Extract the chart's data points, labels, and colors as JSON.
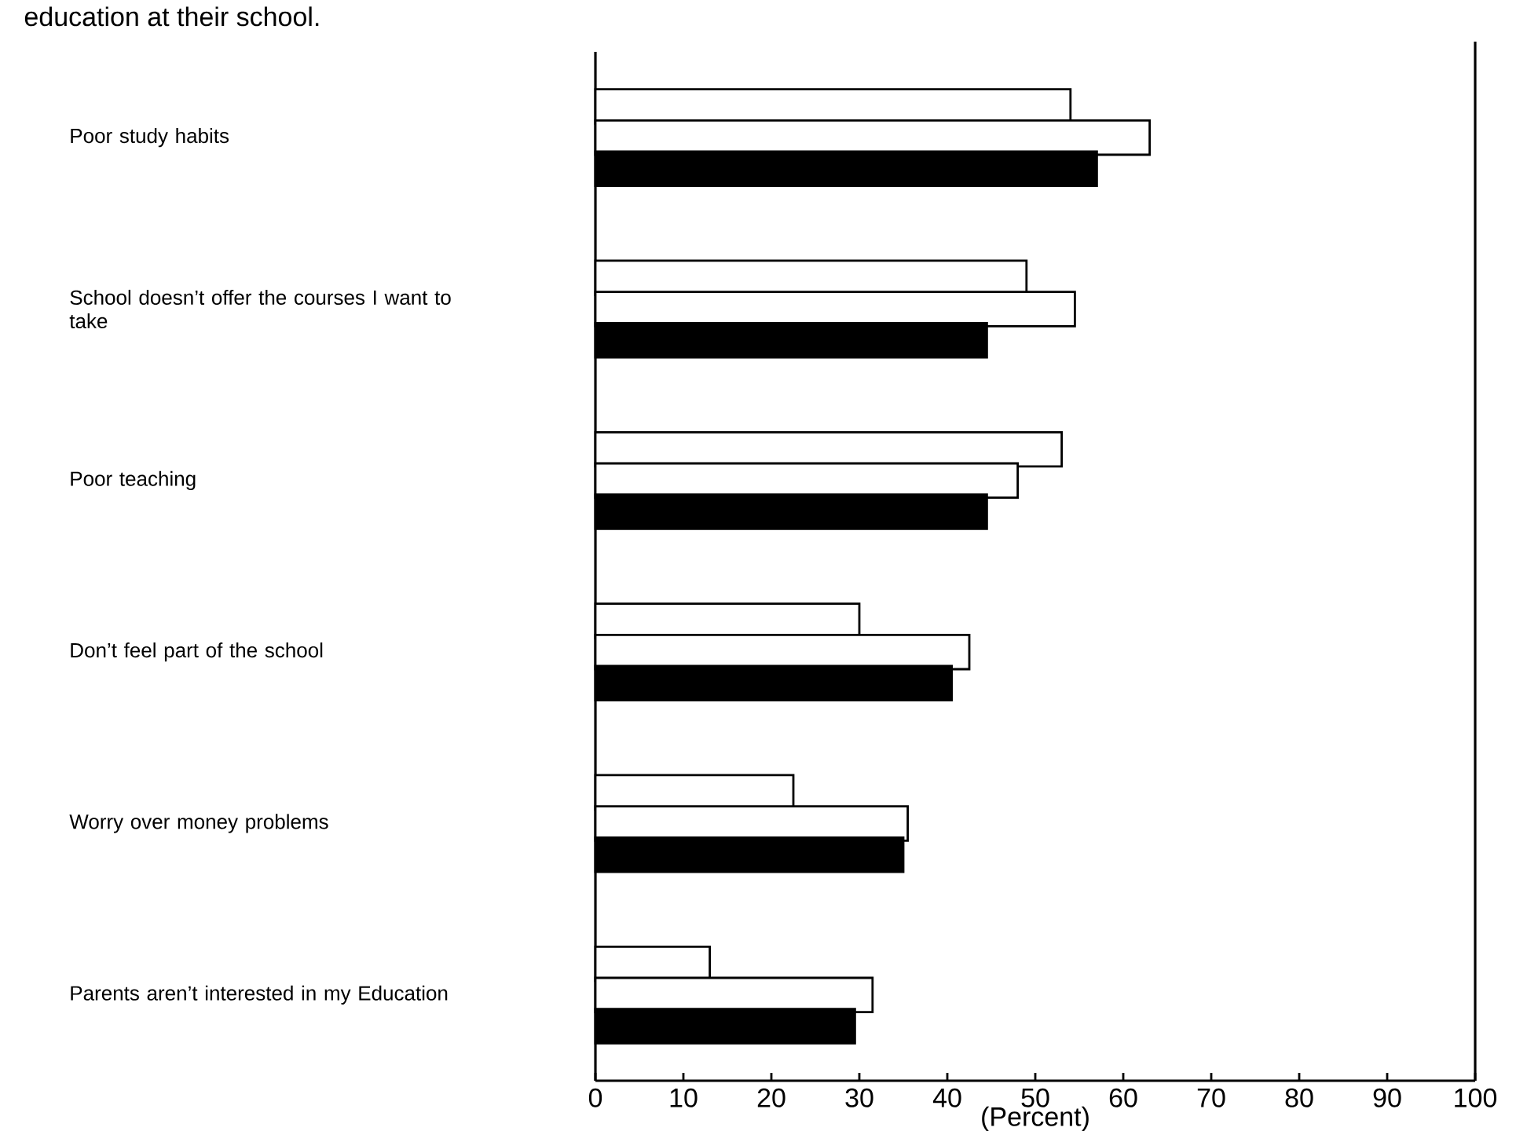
{
  "chart_data": {
    "type": "bar",
    "orientation": "horizontal",
    "title": "education at their school.",
    "xlabel": "(Percent)",
    "categories": [
      "Poor study habits",
      "School doesn’t offer the courses I want to take",
      "Poor teaching",
      "Don’t feel part of the school",
      "Worry over money problems",
      "Parents aren’t interested in my Education"
    ],
    "series": [
      {
        "color": "#ffffff",
        "values": [
          54,
          49,
          53,
          30,
          22.5,
          13
        ]
      },
      {
        "color": "#ffffff",
        "values": [
          63,
          54.5,
          48,
          42.5,
          35.5,
          31.5
        ]
      },
      {
        "color": "#000000",
        "values": [
          57,
          44.5,
          44.5,
          40.5,
          35,
          29.5
        ]
      }
    ],
    "xlim": [
      0,
      100
    ],
    "xticks": [
      0,
      10,
      20,
      30,
      40,
      50,
      60,
      70,
      80,
      90,
      100
    ]
  }
}
